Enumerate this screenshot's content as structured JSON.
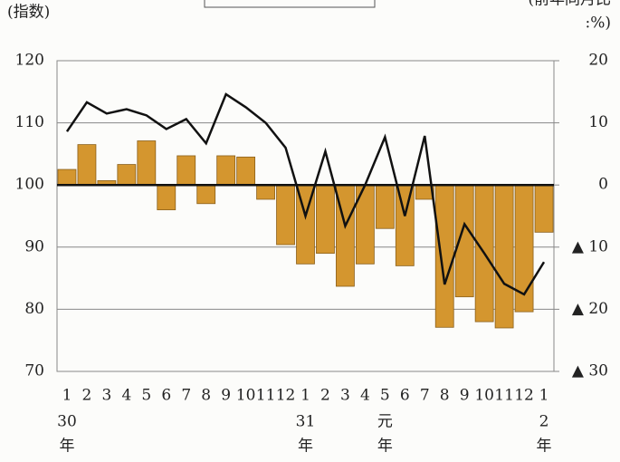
{
  "chart_data": {
    "type": "bar_line",
    "ylabel": "(指数)",
    "y2label": [
      "(前年同月比",
      ":%)"
    ],
    "categories": [
      "1",
      "2",
      "3",
      "4",
      "5",
      "6",
      "7",
      "8",
      "9",
      "10",
      "11",
      "12",
      "1",
      "2",
      "3",
      "4",
      "5",
      "6",
      "7",
      "8",
      "9",
      "10",
      "11",
      "12",
      "1"
    ],
    "year_labels": [
      [
        "30",
        "年"
      ],
      null,
      null,
      null,
      null,
      null,
      null,
      null,
      null,
      null,
      null,
      null,
      [
        "31",
        "年"
      ],
      null,
      null,
      null,
      [
        "元",
        "年"
      ],
      null,
      null,
      null,
      null,
      null,
      null,
      null,
      [
        "2",
        "年"
      ]
    ],
    "series": [
      {
        "kind": "bar",
        "axis": "y2",
        "color": "#d4962f",
        "values": [
          2.5,
          6.5,
          0.7,
          3.3,
          7.1,
          -4,
          4.7,
          -3,
          4.7,
          4.5,
          -2.3,
          -9.6,
          -12.7,
          -11,
          -16.3,
          -12.7,
          -7,
          -13,
          -2.3,
          -22.9,
          -18,
          -22,
          -23,
          -20.4,
          -7.6
        ]
      },
      {
        "kind": "line",
        "axis": "y",
        "color": "#111111",
        "values": [
          108.6,
          113.3,
          111.5,
          112.2,
          111.2,
          109,
          110.6,
          106.7,
          114.6,
          112.5,
          110,
          106,
          95,
          105.4,
          93.4,
          100,
          107.7,
          95,
          107.9,
          84,
          93.7,
          89,
          84.1,
          82.4,
          87.6
        ]
      }
    ],
    "ylim": [
      70,
      120
    ],
    "yticks": [
      70,
      80,
      90,
      100,
      110,
      120
    ],
    "y2lim": [
      -30,
      20
    ],
    "y2ticks": [
      {
        "value": -30,
        "label": "▲ 30"
      },
      {
        "value": -20,
        "label": "▲ 20"
      },
      {
        "value": -10,
        "label": "▲ 10"
      },
      0,
      10,
      20
    ],
    "grid": true
  }
}
